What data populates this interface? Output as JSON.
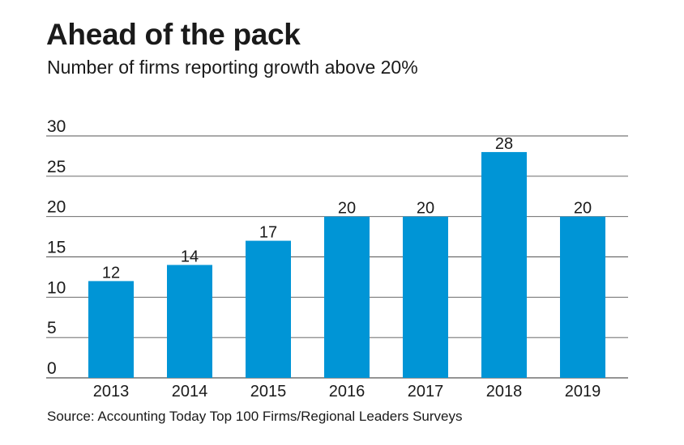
{
  "title": "Ahead of the pack",
  "subtitle": "Number of firms reporting growth above 20%",
  "source": "Source: Accounting Today Top 100 Firms/Regional Leaders Surveys",
  "colors": {
    "bar": "#0095d6",
    "grid": "#555555",
    "text": "#1a1a1a"
  },
  "chart_data": {
    "type": "bar",
    "title": "Ahead of the pack",
    "subtitle": "Number of firms reporting growth above 20%",
    "xlabel": "",
    "ylabel": "",
    "categories": [
      "2013",
      "2014",
      "2015",
      "2016",
      "2017",
      "2018",
      "2019"
    ],
    "values": [
      12,
      14,
      17,
      20,
      20,
      28,
      20
    ],
    "ylim": [
      0,
      30
    ],
    "yticks": [
      0,
      5,
      10,
      15,
      20,
      25,
      30
    ],
    "grid": true,
    "data_labels": true,
    "legend": "none"
  }
}
